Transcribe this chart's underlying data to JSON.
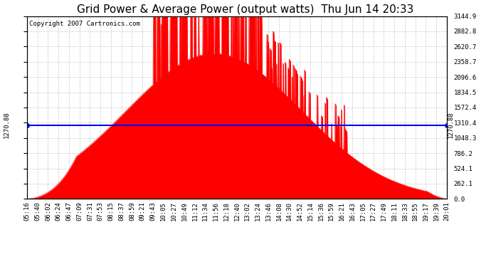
{
  "title": "Grid Power & Average Power (output watts)  Thu Jun 14 20:33",
  "copyright": "Copyright 2007 Cartronics.com",
  "average_line": 1270.88,
  "y_max": 3144.9,
  "y_ticks": [
    0.0,
    262.1,
    524.1,
    786.2,
    1048.3,
    1310.4,
    1572.4,
    1834.5,
    2096.6,
    2358.7,
    2620.7,
    2882.8,
    3144.9
  ],
  "avg_label": "1270.88",
  "fill_color": "#FF0000",
  "avg_line_color": "#0000FF",
  "bg_color": "#FFFFFF",
  "grid_color": "#BBBBBB",
  "title_fontsize": 11,
  "copyright_fontsize": 6.5,
  "tick_fontsize": 6.5,
  "avg_fontsize": 6.5,
  "x_labels": [
    "05:16",
    "05:40",
    "06:02",
    "06:24",
    "06:47",
    "07:09",
    "07:31",
    "07:53",
    "08:15",
    "08:37",
    "08:59",
    "09:21",
    "09:43",
    "10:05",
    "10:27",
    "10:49",
    "11:12",
    "11:34",
    "11:56",
    "12:18",
    "12:40",
    "13:02",
    "13:24",
    "13:46",
    "14:08",
    "14:30",
    "14:52",
    "15:14",
    "15:36",
    "15:59",
    "16:21",
    "16:43",
    "17:05",
    "17:27",
    "17:49",
    "18:11",
    "18:33",
    "18:55",
    "19:17",
    "19:39",
    "20:01"
  ]
}
